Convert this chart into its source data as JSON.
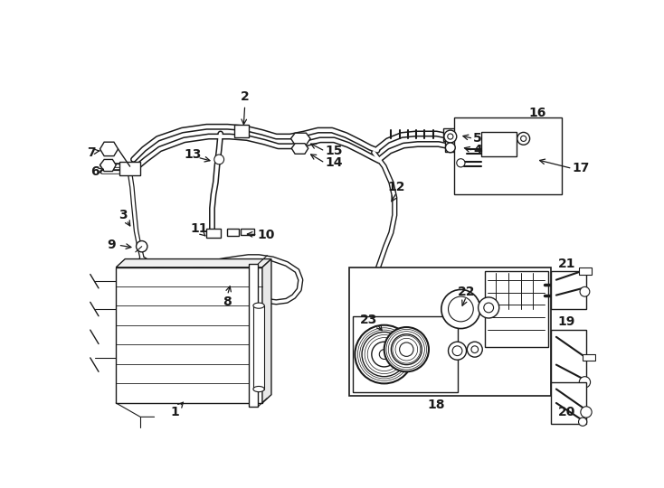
{
  "bg_color": "#ffffff",
  "line_color": "#1a1a1a",
  "lw": 1.0,
  "figsize": [
    7.34,
    5.4
  ],
  "dpi": 100,
  "xlim": [
    0,
    734
  ],
  "ylim": [
    0,
    540
  ]
}
